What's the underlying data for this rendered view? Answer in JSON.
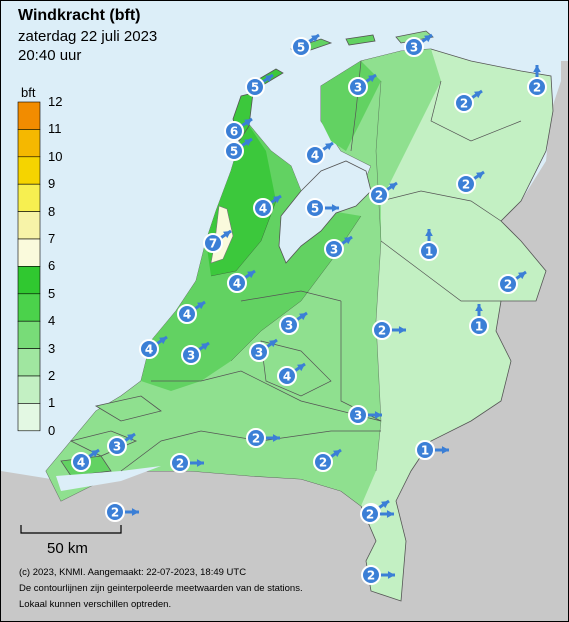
{
  "title": "Windkracht (bft)",
  "subtitle": "zaterdag 22 juli 2023",
  "time": "20:40 uur",
  "legend": {
    "unit": "bft",
    "labels": [
      "12",
      "11",
      "10",
      "9",
      "8",
      "7",
      "6",
      "5",
      "4",
      "3",
      "2",
      "1",
      "0"
    ],
    "colors": [
      "#f28c00",
      "#f5b800",
      "#f5d400",
      "#f7ef50",
      "#f7f3a8",
      "#fafadc",
      "#30c830",
      "#4bd24b",
      "#78dc78",
      "#a0e6a0",
      "#c3f0c3",
      "#e3f8e3"
    ]
  },
  "colors": {
    "sea": "#dceef8",
    "land_outside": "#c8c8c8",
    "bft2": "#c3f0c3",
    "bft3": "#8fe08f",
    "bft4": "#62d262",
    "bft5": "#3cc83c",
    "bft7": "#fafadc",
    "marker": "#3b7fd6"
  },
  "scale_bar": {
    "label": "50 km"
  },
  "footer": [
    "(c) 2023, KNMI. Aangemaakt: 22-07-2023, 18:49 UTC",
    "De contourlijnen zijn geinterpoleerde meetwaarden van de stations.",
    "Lokaal kunnen verschillen optreden."
  ],
  "stations": [
    {
      "value": "5",
      "dir": "NE"
    },
    {
      "value": "3",
      "dir": "NE"
    },
    {
      "value": "2",
      "dir": "NE"
    },
    {
      "value": "5",
      "dir": "NE"
    },
    {
      "value": "3",
      "dir": "NE"
    },
    {
      "value": "2",
      "dir": "N"
    },
    {
      "value": "6",
      "dir": "NE"
    },
    {
      "value": "5",
      "dir": "NE"
    },
    {
      "value": "4",
      "dir": "NE"
    },
    {
      "value": "2",
      "dir": "NE"
    },
    {
      "value": "2",
      "dir": "NE"
    },
    {
      "value": "4",
      "dir": "NE"
    },
    {
      "value": "5",
      "dir": "E"
    },
    {
      "value": "1",
      "dir": "N"
    },
    {
      "value": "7",
      "dir": "NE"
    },
    {
      "value": "3",
      "dir": "NE"
    },
    {
      "value": "4",
      "dir": "NE"
    },
    {
      "value": "2",
      "dir": "NE"
    },
    {
      "value": "4",
      "dir": "NE"
    },
    {
      "value": "3",
      "dir": "NE"
    },
    {
      "value": "1",
      "dir": "N"
    },
    {
      "value": "2",
      "dir": "E"
    },
    {
      "value": "4",
      "dir": "NE"
    },
    {
      "value": "3",
      "dir": "NE"
    },
    {
      "value": "3",
      "dir": "NE"
    },
    {
      "value": "4",
      "dir": "NE"
    },
    {
      "value": "3",
      "dir": "E"
    },
    {
      "value": "3",
      "dir": "NE"
    },
    {
      "value": "2",
      "dir": "E"
    },
    {
      "value": "1",
      "dir": "E"
    },
    {
      "value": "2",
      "dir": "E"
    },
    {
      "value": "4",
      "dir": "NE"
    },
    {
      "value": "2",
      "dir": "NE"
    },
    {
      "value": "2",
      "dir": "E"
    },
    {
      "value": "2",
      "dir": "NE"
    },
    {
      "value": "2",
      "dir": "E"
    },
    {
      "value": "2",
      "dir": "E"
    }
  ]
}
